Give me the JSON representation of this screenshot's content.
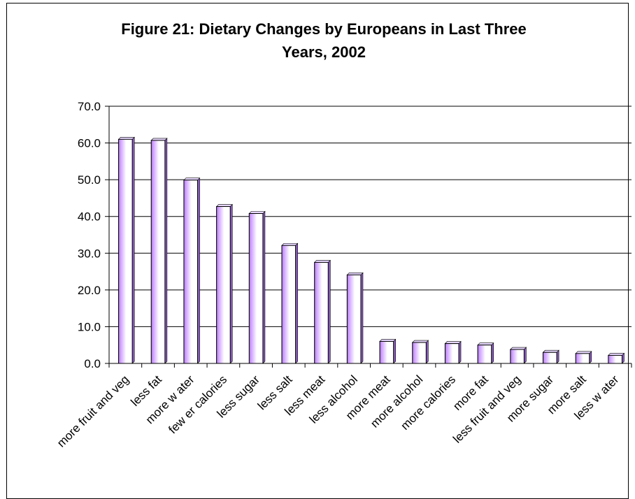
{
  "chart_data": {
    "type": "bar",
    "title": "Figure 21: Dietary Changes by Europeans in Last Three Years, 2002",
    "title_lines": [
      "Figure 21: Dietary Changes by Europeans in Last Three",
      "Years, 2002"
    ],
    "xlabel": "",
    "ylabel": "",
    "ylim": [
      0,
      70
    ],
    "yticks": [
      "0.0",
      "10.0",
      "20.0",
      "30.0",
      "40.0",
      "50.0",
      "60.0",
      "70.0"
    ],
    "ytick_values": [
      0,
      10,
      20,
      30,
      40,
      50,
      60,
      70
    ],
    "grid": true,
    "legend": "none",
    "categories": [
      "more fruit and veg",
      "less fat",
      "more w ater",
      "few er calories",
      "less sugar",
      "less salt",
      "less meat",
      "less alcohol",
      "more meat",
      "more alcohol",
      "more calories",
      "more fat",
      "less fruit and veg",
      "more sugar",
      "more salt",
      "less w ater"
    ],
    "values": [
      61.0,
      60.7,
      49.9,
      42.7,
      40.8,
      32.1,
      27.5,
      24.1,
      6.0,
      5.7,
      5.4,
      5.0,
      3.8,
      3.0,
      2.7,
      2.2
    ],
    "bar_color": "#cc99ff",
    "bar_highlight": "#ffffff"
  }
}
